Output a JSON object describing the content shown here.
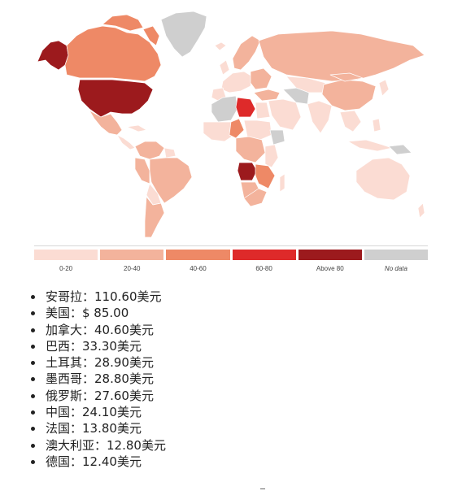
{
  "colors": {
    "bin_0_20": "#fbdcd3",
    "bin_20_40": "#f3b39c",
    "bin_40_60": "#ee8966",
    "bin_60_80": "#de2a2a",
    "bin_above_80": "#9c1a1d",
    "no_data": "#cfcfcf",
    "land_border": "#ffffff"
  },
  "map": {
    "legend": [
      {
        "label": "0-20",
        "color_key": "bin_0_20",
        "italic": false
      },
      {
        "label": "20-40",
        "color_key": "bin_20_40",
        "italic": false
      },
      {
        "label": "40-60",
        "color_key": "bin_40_60",
        "italic": false
      },
      {
        "label": "60-80",
        "color_key": "bin_60_80",
        "italic": false
      },
      {
        "label": "Above 80",
        "color_key": "bin_above_80",
        "italic": false
      },
      {
        "label": "No data",
        "color_key": "no_data",
        "italic": true
      }
    ]
  },
  "price_list": [
    "安哥拉：110.60美元",
    "美国：$ 85.00",
    "加拿大：40.60美元",
    "巴西：33.30美元",
    "土耳其：28.90美元",
    "墨西哥：28.80美元",
    "俄罗斯：27.60美元",
    "中国：24.10美元",
    "法国：13.80美元",
    "澳大利亚：12.80美元",
    "德国：12.40美元"
  ]
}
